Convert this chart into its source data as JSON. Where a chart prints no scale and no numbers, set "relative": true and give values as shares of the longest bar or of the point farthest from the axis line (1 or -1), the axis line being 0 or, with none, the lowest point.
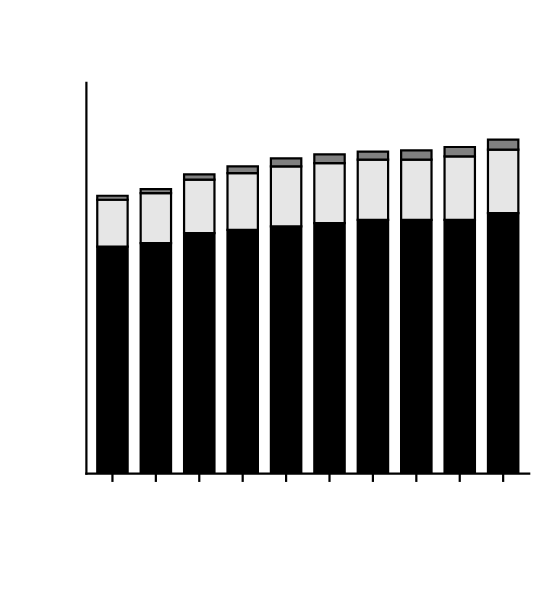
{
  "chart_data": {
    "type": "bar",
    "stacked": true,
    "relative": true,
    "categories": [
      null,
      null,
      null,
      null,
      null,
      null,
      null,
      null,
      null,
      null
    ],
    "series": [
      {
        "color": "#000000",
        "values": [
          0.68,
          0.69,
          0.72,
          0.73,
          0.74,
          0.75,
          0.76,
          0.76,
          0.76,
          0.78
        ]
      },
      {
        "color": "#e6e6e6",
        "values": [
          0.14,
          0.15,
          0.16,
          0.17,
          0.18,
          0.18,
          0.18,
          0.18,
          0.19,
          0.19
        ]
      },
      {
        "color": "#808080",
        "values": [
          0.012,
          0.012,
          0.016,
          0.02,
          0.024,
          0.026,
          0.024,
          0.028,
          0.028,
          0.03
        ]
      }
    ]
  }
}
